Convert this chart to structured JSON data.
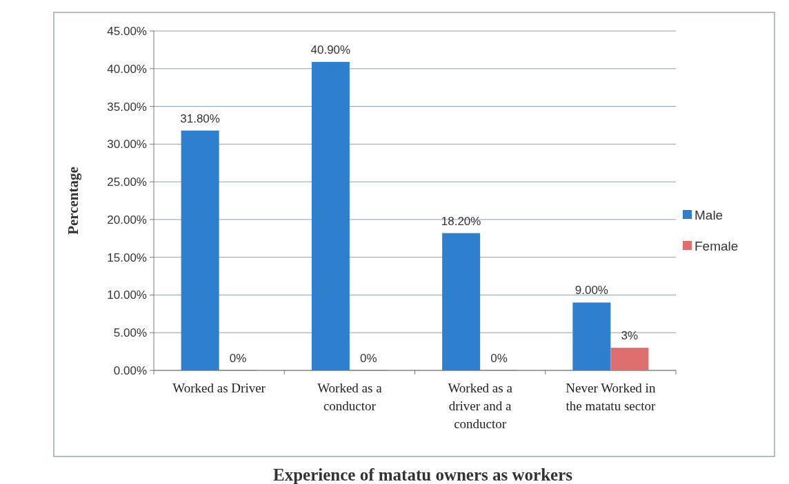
{
  "chart_data": {
    "type": "bar",
    "xlabel": "Experience of matatu owners as workers",
    "ylabel": "Percentage",
    "categories": [
      "Worked as Driver",
      "Worked as a conductor",
      "Worked as a driver and a conductor",
      "Never Worked in the matatu sector"
    ],
    "series": [
      {
        "name": "Male",
        "color": "#2f7fcf",
        "values": [
          31.8,
          40.9,
          18.2,
          9.0
        ],
        "value_labels": [
          "31.80%",
          "40.90%",
          "18.20%",
          "9.00%"
        ]
      },
      {
        "name": "Female",
        "color": "#df6e6e",
        "values": [
          0,
          0,
          0,
          3
        ],
        "value_labels": [
          "0%",
          "0%",
          "0%",
          "3%"
        ]
      }
    ],
    "ylim": [
      0,
      45
    ],
    "yticks": [
      {
        "value": 0,
        "label": "0.00%"
      },
      {
        "value": 5,
        "label": "5.00%"
      },
      {
        "value": 10,
        "label": "10.00%"
      },
      {
        "value": 15,
        "label": "15.00%"
      },
      {
        "value": 20,
        "label": "20.00%"
      },
      {
        "value": 25,
        "label": "25.00%"
      },
      {
        "value": 30,
        "label": "30.00%"
      },
      {
        "value": 35,
        "label": "35.00%"
      },
      {
        "value": 40,
        "label": "40.00%"
      },
      {
        "value": 45,
        "label": "45.00%"
      }
    ],
    "grid": "y",
    "legend": "right"
  }
}
